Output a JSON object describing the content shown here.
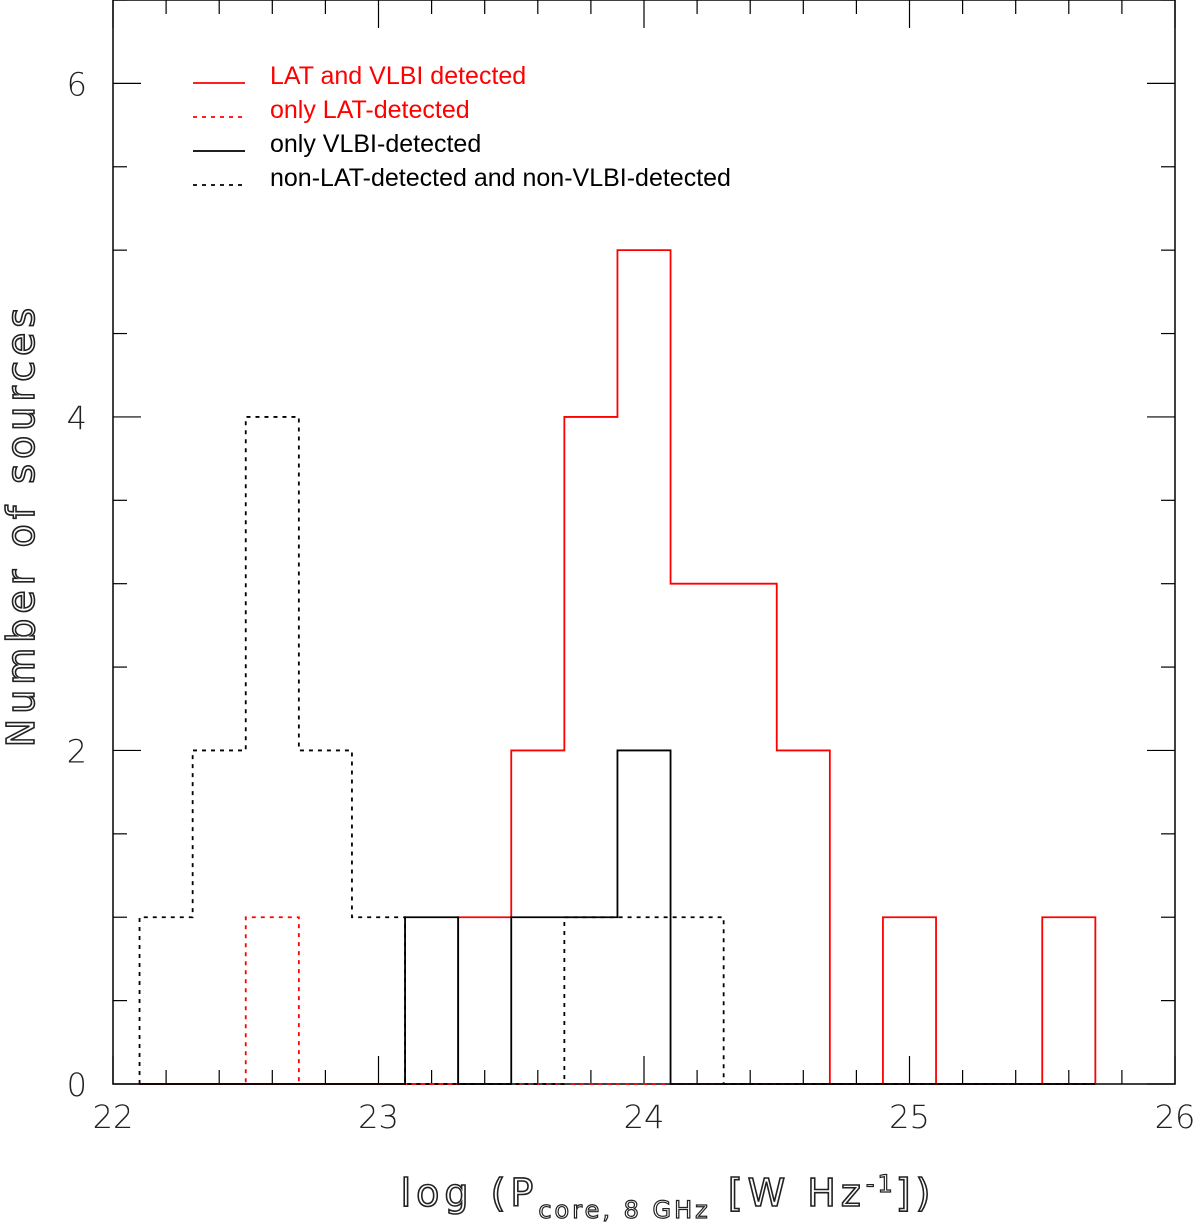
{
  "chart_data": {
    "type": "histogram",
    "xlabel": {
      "prefix": "log (P",
      "subscript": "core, 8 GHz",
      "unit": " [W Hz",
      "exponent": "-1",
      "suffix": "])"
    },
    "ylabel": "Number of sources",
    "xlim": [
      22,
      26
    ],
    "ylim": [
      0,
      6.5
    ],
    "x_ticks": [
      "22",
      "23",
      "24",
      "25",
      "26"
    ],
    "y_ticks": [
      "0",
      "2",
      "4",
      "6"
    ],
    "bin_edges": [
      22.1,
      22.3,
      22.5,
      22.7,
      22.9,
      23.1,
      23.3,
      23.5,
      23.7,
      23.9,
      24.1,
      24.3,
      24.5,
      24.7,
      24.9,
      25.1,
      25.3,
      25.5,
      25.7
    ],
    "series": [
      {
        "name": "LAT and VLBI detected",
        "color": "#ff0000",
        "dash": "solid",
        "counts": [
          0,
          0,
          0,
          0,
          0,
          0,
          1,
          2,
          4,
          5,
          3,
          3,
          2,
          0,
          1,
          0,
          0,
          1
        ]
      },
      {
        "name": "only LAT-detected",
        "color": "#ff0000",
        "dash": "dotted",
        "counts": [
          0,
          0,
          1,
          0,
          0,
          0,
          0,
          0,
          0,
          0,
          0,
          0,
          0,
          0,
          0,
          0,
          0,
          0
        ]
      },
      {
        "name": "only VLBI-detected",
        "color": "#000000",
        "dash": "solid",
        "counts": [
          0,
          0,
          0,
          0,
          0,
          1,
          0,
          1,
          1,
          2,
          0,
          0,
          0,
          0,
          0,
          0,
          0,
          0
        ]
      },
      {
        "name": "non-LAT-detected and non-VLBI-detected",
        "color": "#000000",
        "dash": "dotted",
        "counts": [
          1,
          2,
          4,
          2,
          1,
          0,
          0,
          0,
          1,
          1,
          1,
          0,
          0,
          0,
          0,
          0,
          0,
          0
        ]
      }
    ],
    "legend_position": "top-left"
  }
}
